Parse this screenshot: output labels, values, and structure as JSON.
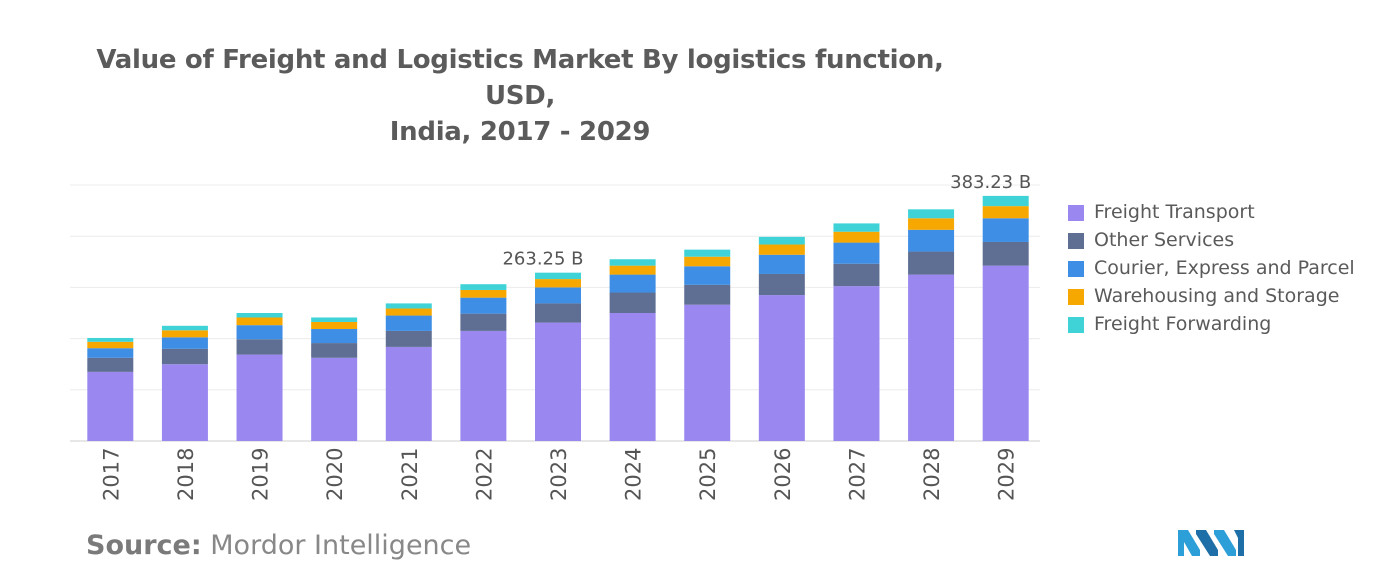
{
  "title_line1": "Value of Freight and Logistics Market By logistics function, USD,",
  "title_line2": "India, 2017 - 2029",
  "source_label": "Source:",
  "source_value": "Mordor Intelligence",
  "chart_data": {
    "type": "bar",
    "stacked": true,
    "title": "Value of Freight and Logistics Market By logistics function, USD, India, 2017 - 2029",
    "xlabel": "",
    "ylabel": "",
    "ylim": [
      0,
      400
    ],
    "grid": true,
    "legend_position": "right",
    "categories": [
      "2017",
      "2018",
      "2019",
      "2020",
      "2021",
      "2022",
      "2023",
      "2024",
      "2025",
      "2026",
      "2027",
      "2028",
      "2029"
    ],
    "series": [
      {
        "name": "Freight Transport",
        "color": "#9a88f0",
        "values": [
          108,
          120,
          135,
          130,
          147,
          172,
          185,
          200,
          213,
          228,
          242,
          260,
          274
        ]
      },
      {
        "name": "Other Services",
        "color": "#5f6f93",
        "values": [
          22,
          24,
          24,
          23,
          25,
          27,
          30,
          32,
          31,
          33,
          35,
          36,
          37
        ]
      },
      {
        "name": "Courier, Express and Parcel",
        "color": "#3e8ee6",
        "values": [
          15,
          18,
          22,
          22,
          24,
          25,
          25,
          28,
          29,
          30,
          33,
          34,
          37
        ]
      },
      {
        "name": "Warehousing and Storage",
        "color": "#f7a800",
        "values": [
          10,
          11,
          12,
          11,
          11,
          12,
          13,
          14,
          15,
          16,
          17,
          18,
          19
        ]
      },
      {
        "name": "Freight Forwarding",
        "color": "#3fd3d8",
        "values": [
          6,
          7,
          7,
          7,
          8,
          9,
          10,
          10,
          11,
          12,
          13,
          14,
          16
        ]
      }
    ],
    "annotations": [
      {
        "category": "2023",
        "text": "263.25 B"
      },
      {
        "category": "2029",
        "text": "383.23 B"
      }
    ]
  }
}
